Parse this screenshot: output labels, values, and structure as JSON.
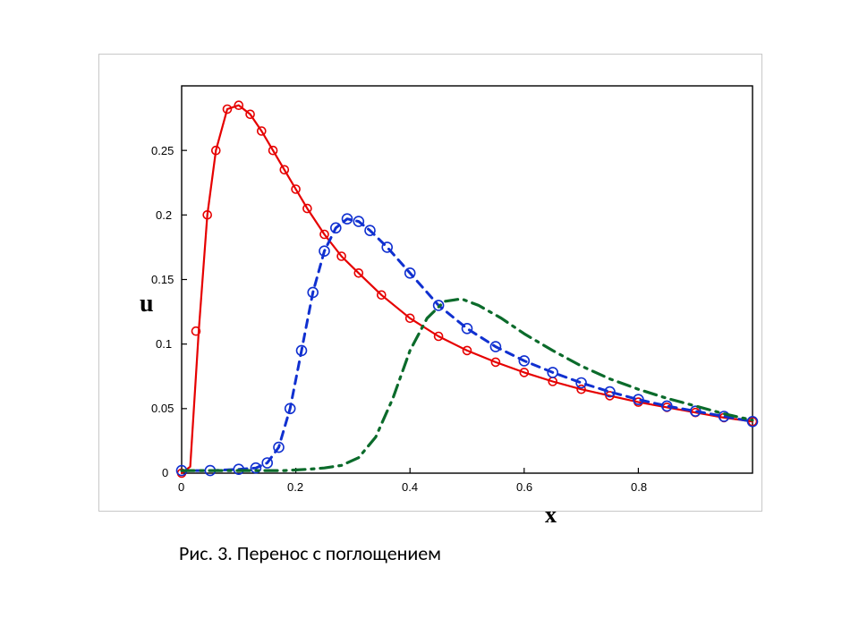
{
  "caption": "Рис. 3. Перенос с поглощением",
  "chart": {
    "type": "line",
    "background_color": "#ffffff",
    "border_color": "#c8c8c8",
    "axes_color": "#000000",
    "xlabel": "x",
    "ylabel": "u",
    "label_fontsize": 26,
    "label_fontweight": "bold",
    "xlim": [
      0,
      1.0
    ],
    "ylim": [
      0,
      0.3
    ],
    "xticks": [
      0,
      0.2,
      0.4,
      0.6,
      0.8
    ],
    "yticks": [
      0,
      0.05,
      0.1,
      0.15,
      0.2,
      0.25
    ],
    "xtick_labels": [
      "0",
      "0.2",
      "0.4",
      "0.6",
      "0.8"
    ],
    "ytick_labels": [
      "0",
      "0.05",
      "0.1",
      "0.15",
      "0.2",
      "0.25"
    ],
    "tick_fontsize": 13,
    "series": [
      {
        "name": "red-line",
        "color": "#e60000",
        "style": "solid",
        "line_width": 2.2,
        "marker": "none",
        "x": [
          0.0,
          0.015,
          0.03,
          0.045,
          0.06,
          0.08,
          0.1,
          0.12,
          0.14,
          0.16,
          0.18,
          0.2,
          0.22,
          0.25,
          0.28,
          0.31,
          0.35,
          0.4,
          0.45,
          0.5,
          0.55,
          0.6,
          0.65,
          0.7,
          0.75,
          0.8,
          0.85,
          0.9,
          0.95,
          1.0
        ],
        "y": [
          0.0,
          0.005,
          0.11,
          0.2,
          0.25,
          0.282,
          0.285,
          0.278,
          0.265,
          0.25,
          0.235,
          0.22,
          0.205,
          0.185,
          0.168,
          0.155,
          0.138,
          0.12,
          0.106,
          0.095,
          0.086,
          0.078,
          0.071,
          0.065,
          0.06,
          0.055,
          0.051,
          0.047,
          0.043,
          0.04
        ]
      },
      {
        "name": "red-markers",
        "color": "#e60000",
        "style": "none",
        "line_width": 0,
        "marker": "circle",
        "marker_size": 4.5,
        "marker_fill": "none",
        "x": [
          0.0,
          0.025,
          0.045,
          0.06,
          0.08,
          0.1,
          0.12,
          0.14,
          0.16,
          0.18,
          0.2,
          0.22,
          0.25,
          0.28,
          0.31,
          0.35,
          0.4,
          0.45,
          0.5,
          0.55,
          0.6,
          0.65,
          0.7,
          0.75,
          0.8,
          0.85,
          0.9,
          0.95,
          1.0
        ],
        "y": [
          0.0,
          0.11,
          0.2,
          0.25,
          0.282,
          0.285,
          0.278,
          0.265,
          0.25,
          0.235,
          0.22,
          0.205,
          0.185,
          0.168,
          0.155,
          0.138,
          0.12,
          0.106,
          0.095,
          0.086,
          0.078,
          0.071,
          0.065,
          0.06,
          0.055,
          0.051,
          0.047,
          0.043,
          0.04
        ]
      },
      {
        "name": "blue-line",
        "color": "#1030d0",
        "style": "dashed",
        "dash": "9 7",
        "line_width": 3,
        "marker": "none",
        "x": [
          0.0,
          0.05,
          0.1,
          0.13,
          0.15,
          0.17,
          0.19,
          0.21,
          0.23,
          0.25,
          0.27,
          0.29,
          0.31,
          0.33,
          0.36,
          0.4,
          0.45,
          0.5,
          0.55,
          0.6,
          0.65,
          0.7,
          0.75,
          0.8,
          0.85,
          0.9,
          0.95,
          1.0
        ],
        "y": [
          0.002,
          0.002,
          0.003,
          0.004,
          0.008,
          0.02,
          0.05,
          0.095,
          0.14,
          0.172,
          0.19,
          0.197,
          0.195,
          0.188,
          0.175,
          0.155,
          0.13,
          0.112,
          0.098,
          0.087,
          0.078,
          0.07,
          0.063,
          0.057,
          0.052,
          0.048,
          0.044,
          0.04
        ]
      },
      {
        "name": "blue-markers",
        "color": "#1030d0",
        "style": "none",
        "line_width": 0,
        "marker": "circle",
        "marker_size": 5.5,
        "marker_fill": "none",
        "x": [
          0.0,
          0.05,
          0.1,
          0.13,
          0.15,
          0.17,
          0.19,
          0.21,
          0.23,
          0.25,
          0.27,
          0.29,
          0.31,
          0.33,
          0.36,
          0.4,
          0.45,
          0.5,
          0.55,
          0.6,
          0.65,
          0.7,
          0.75,
          0.8,
          0.85,
          0.9,
          0.95,
          1.0
        ],
        "y": [
          0.002,
          0.002,
          0.003,
          0.004,
          0.008,
          0.02,
          0.05,
          0.095,
          0.14,
          0.172,
          0.19,
          0.197,
          0.195,
          0.188,
          0.175,
          0.155,
          0.13,
          0.112,
          0.098,
          0.087,
          0.078,
          0.07,
          0.063,
          0.057,
          0.052,
          0.048,
          0.044,
          0.04
        ]
      },
      {
        "name": "green-line",
        "color": "#0b6b2b",
        "style": "dashdot",
        "dash": "14 7 3 7",
        "line_width": 3.2,
        "marker": "none",
        "x": [
          0.0,
          0.1,
          0.18,
          0.22,
          0.25,
          0.28,
          0.31,
          0.34,
          0.37,
          0.4,
          0.43,
          0.46,
          0.49,
          0.52,
          0.56,
          0.6,
          0.65,
          0.7,
          0.75,
          0.8,
          0.85,
          0.9,
          0.95,
          1.0
        ],
        "y": [
          0.002,
          0.002,
          0.002,
          0.003,
          0.004,
          0.006,
          0.012,
          0.028,
          0.058,
          0.095,
          0.12,
          0.133,
          0.135,
          0.13,
          0.12,
          0.108,
          0.095,
          0.083,
          0.073,
          0.065,
          0.058,
          0.052,
          0.046,
          0.041
        ]
      }
    ]
  }
}
